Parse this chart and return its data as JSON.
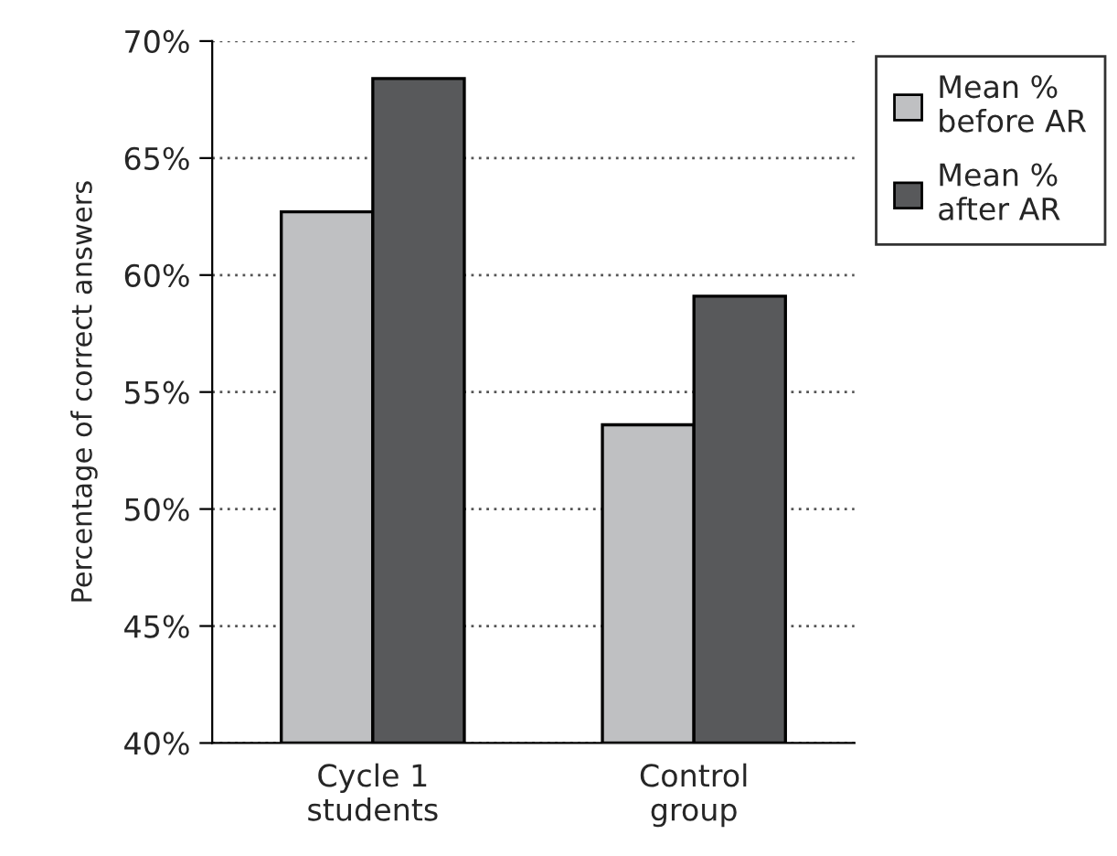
{
  "chart_data": {
    "type": "bar",
    "ylabel": "Percentage of correct answers",
    "categories": [
      "Cycle 1\nstudents",
      "Control\ngroup"
    ],
    "series": [
      {
        "name": "Mean %\nbefore AR",
        "color": "#bfc0c2",
        "values": [
          62.7,
          53.6
        ]
      },
      {
        "name": "Mean %\nafter AR",
        "color": "#58595b",
        "values": [
          68.4,
          59.1
        ]
      }
    ],
    "ylim": [
      40,
      70
    ],
    "yticks": [
      {
        "value": 40,
        "label": "40%"
      },
      {
        "value": 45,
        "label": "45%"
      },
      {
        "value": 50,
        "label": "50%"
      },
      {
        "value": 55,
        "label": "55%"
      },
      {
        "value": 60,
        "label": "60%"
      },
      {
        "value": 65,
        "label": "65%"
      },
      {
        "value": 70,
        "label": "70%"
      }
    ],
    "grid": "y",
    "legend": "top right"
  }
}
